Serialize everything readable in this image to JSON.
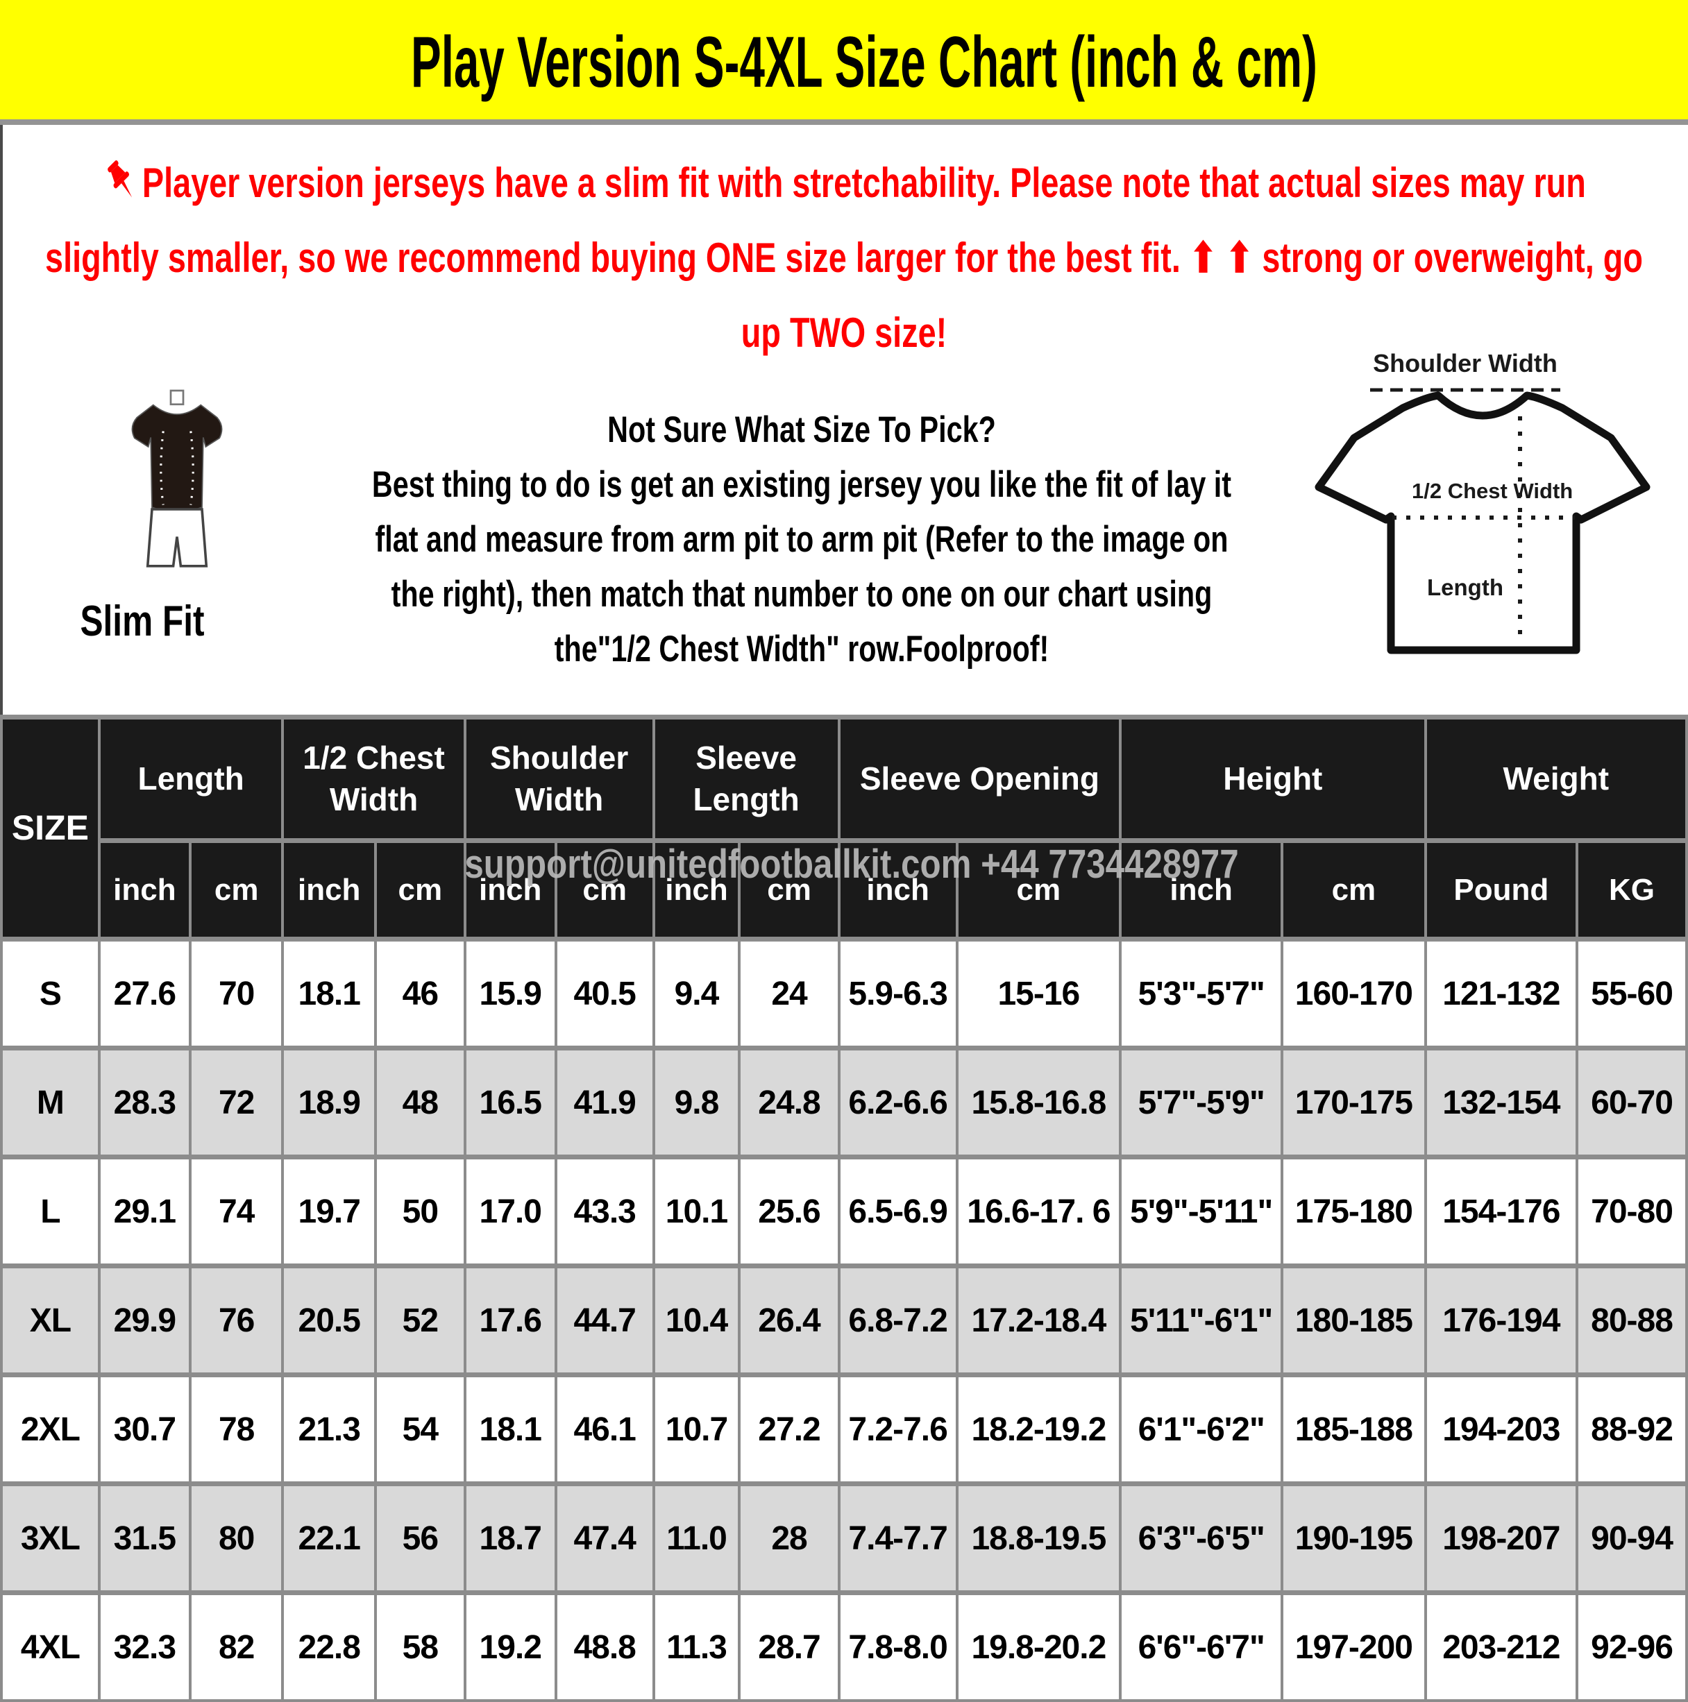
{
  "title": "Play Version S-4XL Size Chart (inch & cm)",
  "warning": {
    "color": "#FF0000",
    "pin_icon": "pushpin",
    "line1": "Player version jerseys have a slim fit with stretchability. Please note that actual sizes may run",
    "line2": "slightly smaller, so we recommend buying ONE size larger for the best fit. ⬆ ⬆ strong or overweight, go",
    "line3": "up TWO size!"
  },
  "size_guide": {
    "slim_fit_label": "Slim Fit",
    "heading": "Not Sure What Size To Pick?",
    "body_lines": [
      "Best thing to do is get an existing jersey you like the fit of lay it",
      "flat and measure from arm pit to arm pit (Refer to the image on",
      "the right), then match that number to one on our chart using",
      "the\"1/2 Chest Width\" row.Foolproof!"
    ],
    "diagram": {
      "shoulder_label": "Shoulder Width",
      "chest_label": "1/2 Chest Width",
      "length_label": "Length"
    }
  },
  "watermark": "support@unitedfootballkit.com  +44 7734428977",
  "table": {
    "columns": [
      {
        "label": "SIZE"
      },
      {
        "label": "Length",
        "units": [
          "inch",
          "cm"
        ]
      },
      {
        "label": "1/2 Chest Width",
        "units": [
          "inch",
          "cm"
        ]
      },
      {
        "label": "Shoulder Width",
        "units": [
          "inch",
          "cm"
        ]
      },
      {
        "label": "Sleeve Length",
        "units": [
          "inch",
          "cm"
        ]
      },
      {
        "label": "Sleeve Opening",
        "units": [
          "inch",
          "cm"
        ]
      },
      {
        "label": "Height",
        "units": [
          "inch",
          "cm"
        ]
      },
      {
        "label": "Weight",
        "units": [
          "Pound",
          "KG"
        ]
      }
    ],
    "rows": [
      {
        "size": "S",
        "values": [
          "27.6",
          "70",
          "18.1",
          "46",
          "15.9",
          "40.5",
          "9.4",
          "24",
          "5.9-6.3",
          "15-16",
          "5'3\"-5'7\"",
          "160-170",
          "121-132",
          "55-60"
        ]
      },
      {
        "size": "M",
        "values": [
          "28.3",
          "72",
          "18.9",
          "48",
          "16.5",
          "41.9",
          "9.8",
          "24.8",
          "6.2-6.6",
          "15.8-16.8",
          "5'7\"-5'9\"",
          "170-175",
          "132-154",
          "60-70"
        ]
      },
      {
        "size": "L",
        "values": [
          "29.1",
          "74",
          "19.7",
          "50",
          "17.0",
          "43.3",
          "10.1",
          "25.6",
          "6.5-6.9",
          "16.6-17. 6",
          "5'9\"-5'11\"",
          "175-180",
          "154-176",
          "70-80"
        ]
      },
      {
        "size": "XL",
        "values": [
          "29.9",
          "76",
          "20.5",
          "52",
          "17.6",
          "44.7",
          "10.4",
          "26.4",
          "6.8-7.2",
          "17.2-18.4",
          "5'11\"-6'1\"",
          "180-185",
          "176-194",
          "80-88"
        ]
      },
      {
        "size": "2XL",
        "values": [
          "30.7",
          "78",
          "21.3",
          "54",
          "18.1",
          "46.1",
          "10.7",
          "27.2",
          "7.2-7.6",
          "18.2-19.2",
          "6'1\"-6'2\"",
          "185-188",
          "194-203",
          "88-92"
        ]
      },
      {
        "size": "3XL",
        "values": [
          "31.5",
          "80",
          "22.1",
          "56",
          "18.7",
          "47.4",
          "11.0",
          "28",
          "7.4-7.7",
          "18.8-19.5",
          "6'3\"-6'5\"",
          "190-195",
          "198-207",
          "90-94"
        ]
      },
      {
        "size": "4XL",
        "values": [
          "32.3",
          "82",
          "22.8",
          "58",
          "19.2",
          "48.8",
          "11.3",
          "28.7",
          "7.8-8.0",
          "19.8-20.2",
          "6'6\"-6'7\"",
          "197-200",
          "203-212",
          "92-96"
        ]
      }
    ]
  }
}
